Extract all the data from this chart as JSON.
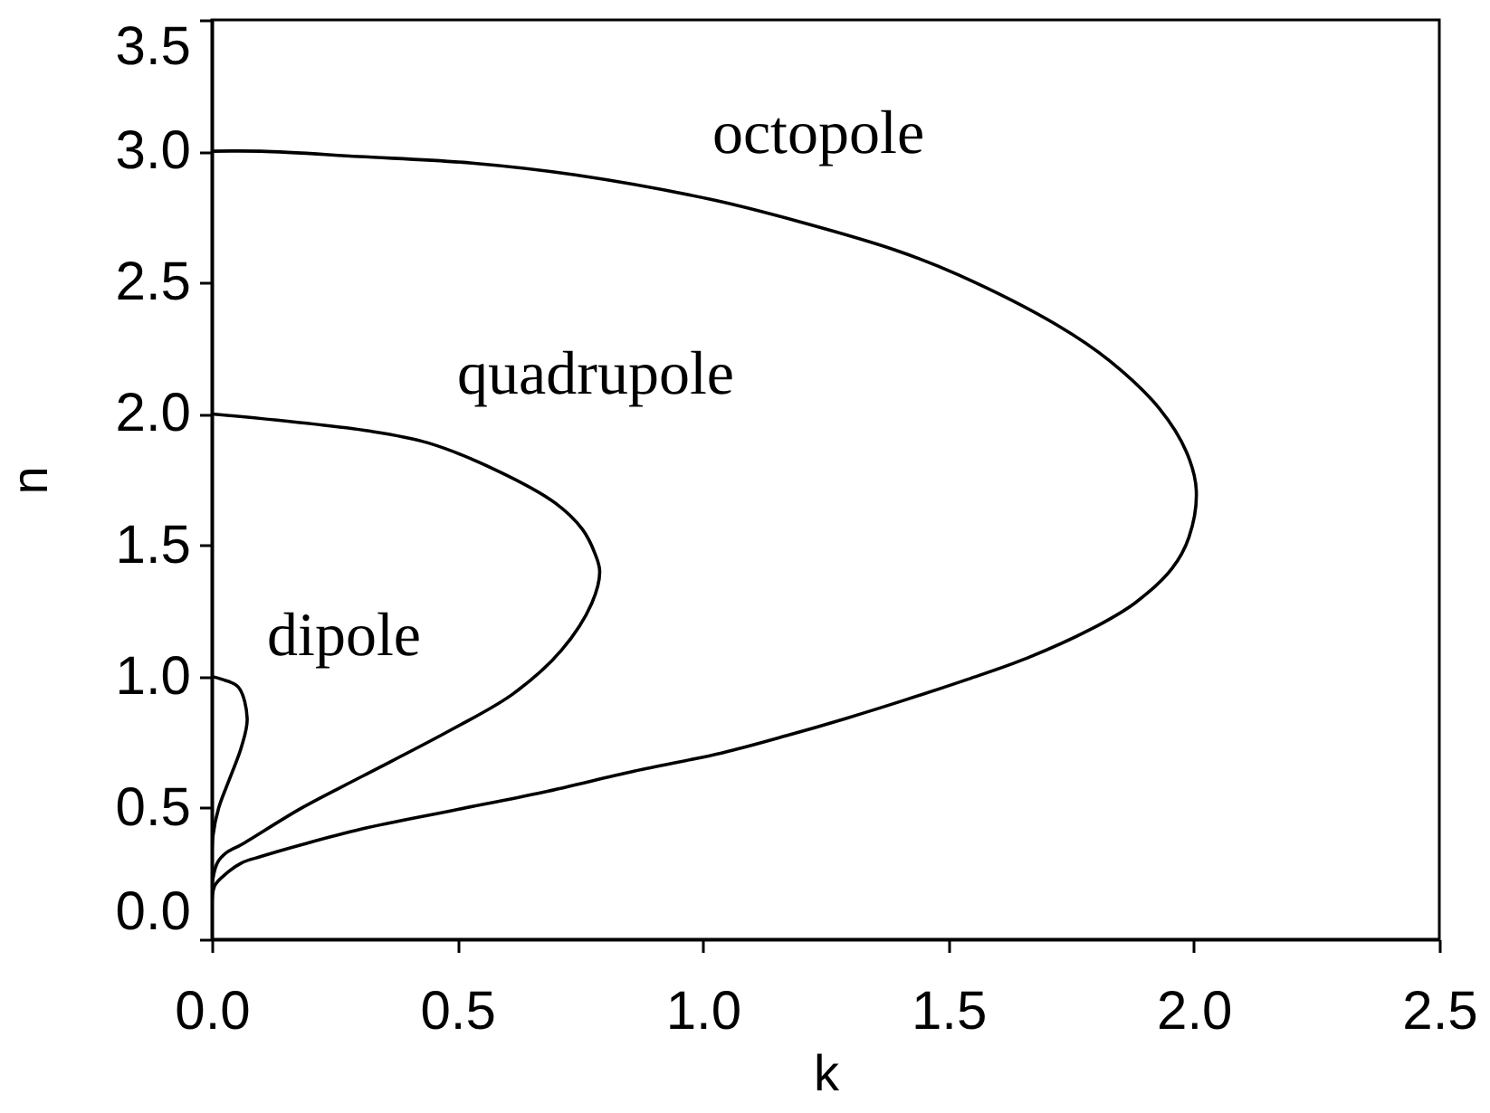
{
  "chart_data": {
    "type": "line",
    "xlabel": "k",
    "ylabel": "n",
    "xlim": [
      0,
      2.5
    ],
    "ylim": [
      0,
      3.5
    ],
    "xticks": [
      {
        "value": 0,
        "label": "0.0"
      },
      0.5,
      {
        "value": 1,
        "label": "1.0"
      },
      1.5,
      {
        "value": 2,
        "label": "2.0"
      },
      2.5
    ],
    "yticks": [
      {
        "value": 0,
        "label": "0.0"
      },
      0.5,
      {
        "value": 1,
        "label": "1.0"
      },
      1.5,
      {
        "value": 2,
        "label": "2.0"
      },
      2.5,
      {
        "value": 3,
        "label": "3.0"
      },
      3.5
    ],
    "grid": false,
    "marker": "none",
    "line_style": "solid",
    "series": [
      {
        "name": "dipole",
        "color": "#000000",
        "x": [
          0,
          0.02,
          0.054,
          0.072,
          0.06,
          0.036,
          0.014,
          0.002,
          0,
          0
        ],
        "values": [
          1.0,
          0.99,
          0.96,
          0.84,
          0.73,
          0.61,
          0.5,
          0.39,
          0.28,
          0.2
        ]
      },
      {
        "name": "quadrupole",
        "color": "#000000",
        "x": [
          0,
          0.32,
          0.44,
          0.58,
          0.7,
          0.755,
          0.78,
          0.79,
          0.774,
          0.712,
          0.614,
          0.49,
          0.306,
          0.183,
          0.06,
          0.03,
          0.011,
          0,
          0
        ],
        "values": [
          2.0,
          1.935,
          1.89,
          1.785,
          1.66,
          1.56,
          1.47,
          1.4,
          1.28,
          1.1,
          0.935,
          0.8,
          0.62,
          0.5,
          0.36,
          0.33,
          0.29,
          0.2,
          0.1
        ]
      },
      {
        "name": "octopole",
        "color": "#000000",
        "x": [
          0,
          0.1,
          0.3,
          0.53,
          0.74,
          1.02,
          1.2,
          1.39,
          1.52,
          1.72,
          1.83,
          1.93,
          1.985,
          2.005,
          1.99,
          1.955,
          1.88,
          1.79,
          1.66,
          1.54,
          1.41,
          1.29,
          1.17,
          1.04,
          0.86,
          0.675,
          0.49,
          0.306,
          0.183,
          0.1,
          0.06,
          0.023,
          0.005,
          0
        ],
        "values": [
          3.0,
          3.0,
          2.98,
          2.955,
          2.91,
          2.815,
          2.73,
          2.625,
          2.53,
          2.34,
          2.2,
          2.02,
          1.855,
          1.71,
          1.53,
          1.41,
          1.28,
          1.18,
          1.07,
          0.99,
          0.91,
          0.84,
          0.775,
          0.71,
          0.64,
          0.56,
          0.49,
          0.42,
          0.36,
          0.315,
          0.29,
          0.24,
          0.2,
          0.1
        ]
      }
    ]
  }
}
